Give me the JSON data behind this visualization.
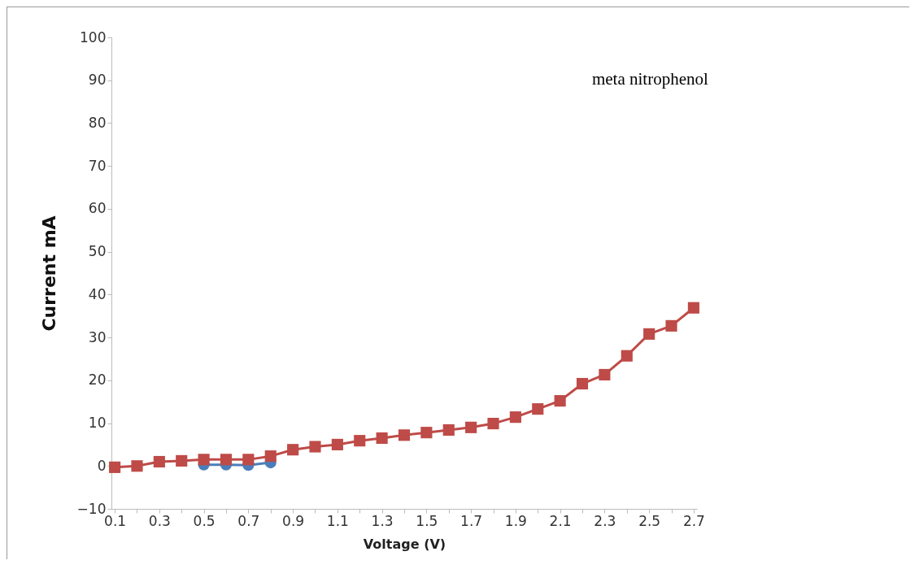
{
  "chart_data": {
    "type": "line",
    "xlabel": "Voltage (V)",
    "ylabel": "Current mA",
    "categories": [
      "0.1",
      null,
      "0.3",
      null,
      "0.5",
      null,
      "0.7",
      null,
      "0.9",
      null,
      "1.1",
      null,
      "1.3",
      null,
      "1.5",
      null,
      "1.7",
      null,
      "1.9",
      null,
      "2.1",
      null,
      "2.3",
      null,
      "2.5",
      null,
      "2.7"
    ],
    "series": [
      {
        "color": "#4a7ebb",
        "marker": "circle",
        "values": [
          null,
          null,
          null,
          null,
          0.3,
          0.3,
          0.2,
          0.8,
          null,
          null,
          null,
          null,
          null,
          null,
          null,
          null,
          null,
          null,
          null,
          null,
          null,
          null,
          null,
          null,
          null,
          null,
          null
        ]
      },
      {
        "color": "#be4b48",
        "marker": "square",
        "values": [
          -0.3,
          0,
          1,
          1.2,
          1.5,
          1.5,
          1.5,
          2.3,
          3.8,
          4.5,
          5,
          5.9,
          6.5,
          7.2,
          7.8,
          8.4,
          9,
          9.9,
          11.4,
          13.3,
          15.2,
          19.2,
          21.3,
          25.7,
          30.8,
          32.7,
          36.9
        ]
      }
    ],
    "ylim": [
      -10,
      100
    ],
    "yticks": [
      -10,
      0,
      10,
      20,
      30,
      40,
      50,
      60,
      70,
      80,
      90,
      100
    ],
    "grid": false,
    "annotations": [
      "meta nitrophenol"
    ]
  }
}
